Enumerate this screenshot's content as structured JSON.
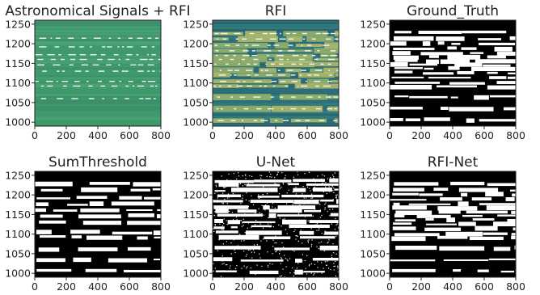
{
  "chart_data": [
    {
      "type": "heatmap",
      "title": "Astronomical Signals + RFI",
      "xlim": [
        0,
        800
      ],
      "ylim": [
        990,
        1260
      ],
      "xticks": [
        0,
        200,
        400,
        600,
        800
      ],
      "yticks": [
        1000,
        1050,
        1100,
        1150,
        1200,
        1250
      ],
      "colormap": "viridis-like",
      "background_color": "#3f9a6b",
      "rfi_bands_y": [
        1214,
        1192,
        1172,
        1160,
        1146,
        1130,
        1104,
        1092,
        1060
      ]
    },
    {
      "type": "heatmap",
      "title": "RFI",
      "xlim": [
        0,
        800
      ],
      "ylim": [
        990,
        1260
      ],
      "xticks": [
        0,
        200,
        400,
        600,
        800
      ],
      "yticks": [
        1000,
        1050,
        1100,
        1150,
        1200,
        1250
      ],
      "colormap": "viridis-like",
      "background_color": "#2c6f7a",
      "rfi_bands_y": [
        1226,
        1212,
        1196,
        1182,
        1170,
        1160,
        1148,
        1132,
        1120,
        1104,
        1092,
        1064,
        1034,
        1004
      ]
    },
    {
      "type": "heatmap",
      "title": "Ground_Truth",
      "xlim": [
        0,
        800
      ],
      "ylim": [
        990,
        1260
      ],
      "xticks": [
        0,
        200,
        400,
        600,
        800
      ],
      "yticks": [
        1000,
        1050,
        1100,
        1150,
        1200,
        1250
      ],
      "colormap": "binary mask (black=clean, white=RFI)",
      "flag_rows_y": [
        1228,
        1213,
        1200,
        1188,
        1176,
        1166,
        1156,
        1146,
        1136,
        1126,
        1114,
        1100,
        1090,
        1064,
        1034,
        1006
      ]
    },
    {
      "type": "heatmap",
      "title": "SumThreshold",
      "xlim": [
        0,
        800
      ],
      "ylim": [
        990,
        1260
      ],
      "xticks": [
        0,
        200,
        400,
        600,
        800
      ],
      "yticks": [
        1000,
        1050,
        1100,
        1150,
        1200,
        1250
      ],
      "colormap": "binary mask (black=clean, white=RFI)",
      "flag_rows_y": [
        1228,
        1214,
        1192,
        1176,
        1162,
        1146,
        1130,
        1104,
        1092,
        1062,
        1034,
        1006
      ]
    },
    {
      "type": "heatmap",
      "title": "U-Net",
      "xlim": [
        0,
        800
      ],
      "ylim": [
        990,
        1260
      ],
      "xticks": [
        0,
        200,
        400,
        600,
        800
      ],
      "yticks": [
        1000,
        1050,
        1100,
        1150,
        1200,
        1250
      ],
      "colormap": "binary mask (black=clean, white=RFI)",
      "flag_rows_y": [
        1236,
        1226,
        1212,
        1196,
        1184,
        1170,
        1160,
        1148,
        1132,
        1118,
        1104,
        1090,
        1064,
        1034,
        1004
      ]
    },
    {
      "type": "heatmap",
      "title": "RFI-Net",
      "xlim": [
        0,
        800
      ],
      "ylim": [
        990,
        1260
      ],
      "xticks": [
        0,
        200,
        400,
        600,
        800
      ],
      "yticks": [
        1000,
        1050,
        1100,
        1150,
        1200,
        1250
      ],
      "colormap": "binary mask (black=clean, white=RFI)",
      "flag_rows_y": [
        1228,
        1213,
        1200,
        1188,
        1176,
        1166,
        1156,
        1146,
        1136,
        1126,
        1114,
        1100,
        1090,
        1064,
        1034,
        1006
      ]
    }
  ]
}
